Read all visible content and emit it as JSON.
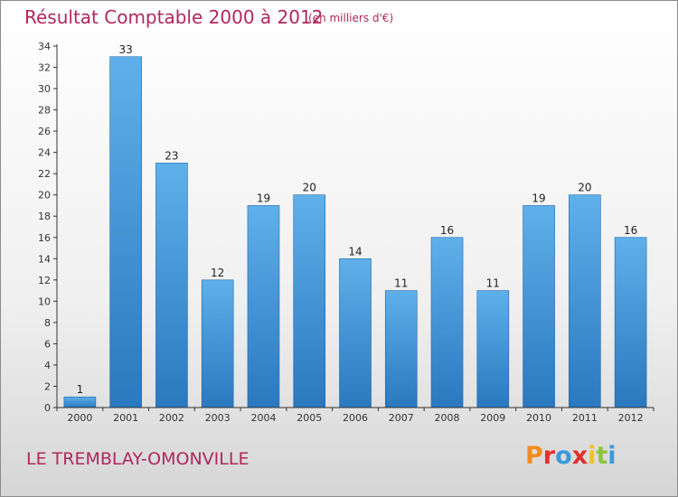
{
  "header": {
    "title": "Résultat Comptable 2000 à 2012",
    "subtitle": "(en milliers d'€)"
  },
  "footer": {
    "location": "LE TREMBLAY-OMONVILLE",
    "logo_text": "Proxiti",
    "logo_colors": [
      "#f28c1e",
      "#e2312f",
      "#3a9ad9",
      "#e2312f",
      "#f2c21e",
      "#8cc63f",
      "#3a9ad9"
    ]
  },
  "colors": {
    "title": "#b0285a",
    "bar_top": "#5fb0ea",
    "bar_bottom": "#2a78bf",
    "bar_edge": "#1f66a8",
    "axis": "#333333"
  },
  "chart_data": {
    "type": "bar",
    "categories": [
      "2000",
      "2001",
      "2002",
      "2003",
      "2004",
      "2005",
      "2006",
      "2007",
      "2008",
      "2009",
      "2010",
      "2011",
      "2012"
    ],
    "values": [
      1,
      33,
      23,
      12,
      19,
      20,
      14,
      11,
      16,
      11,
      19,
      20,
      16
    ],
    "title": "Résultat Comptable 2000 à 2012",
    "xlabel": "",
    "ylabel": "",
    "ylim": [
      0,
      34
    ],
    "y_ticks": [
      0,
      2,
      4,
      6,
      8,
      10,
      12,
      14,
      16,
      18,
      20,
      22,
      24,
      26,
      28,
      30,
      32,
      34
    ],
    "grid": false,
    "data_labels": true
  }
}
